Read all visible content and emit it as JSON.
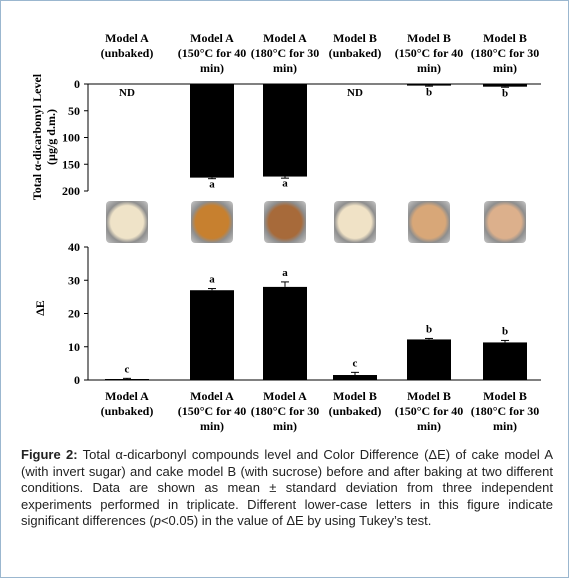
{
  "top_categories": [
    "Model A\n(unbaked)",
    "Model A\n(150°C for 40\nmin)",
    "Model A\n(180°C for 30\nmin)",
    "Model B\n(unbaked)",
    "Model B\n(150°C for 40\nmin)",
    "Model B\n(180°C for 30\nmin)"
  ],
  "bottom_categories": [
    "Model A\n(unbaked)",
    "Model A\n(150°C for 40\nmin)",
    "Model A\n(180°C for 30\nmin)",
    "Model B\n(unbaked)",
    "Model B\n(150°C for 40\nmin)",
    "Model B\n(180°C for 30\nmin)"
  ],
  "thumb_colors": [
    "#efe3c8",
    "#c7802f",
    "#a76a3a",
    "#f0e2c6",
    "#d8a778",
    "#dcb08c"
  ],
  "chart_data": [
    {
      "type": "bar",
      "ylabel": "Total α-dicarbonyl Level\n(µg/g d.m.)",
      "ylim": [
        0,
        200
      ],
      "y_inverted": true,
      "yticks": [
        "0",
        "50",
        "100",
        "150",
        "200"
      ],
      "values": [
        0,
        175,
        173,
        0,
        3,
        5
      ],
      "errors": [
        0,
        2,
        3,
        0,
        1,
        1
      ],
      "labels": [
        "ND",
        "a",
        "a",
        "ND",
        "b",
        "b"
      ],
      "bar_color": "#000000"
    },
    {
      "type": "bar",
      "ylabel": "ΔE",
      "ylim": [
        0,
        40
      ],
      "yticks": [
        "0",
        "10",
        "20",
        "30",
        "40"
      ],
      "values": [
        0.3,
        27,
        28,
        1.5,
        12.2,
        11.3
      ],
      "errors": [
        0.2,
        0.5,
        1.5,
        0.8,
        0.3,
        0.6
      ],
      "labels": [
        "c",
        "a",
        "a",
        "c",
        "b",
        "b"
      ],
      "bar_color": "#000000"
    }
  ],
  "caption": {
    "figure_label": "Figure 2:",
    "text_1": " Total α-dicarbonyl compounds level and Color Difference (ΔE) of cake model A (with invert sugar) and cake model B (with sucrose) before and after baking at two different conditions. Data are shown as mean ± standard deviation from three independent experiments performed in triplicate. Different lower-case letters in this figure indicate significant differences (",
    "p_symbol": "p",
    "text_2": "<0.05) in the value of ΔE by using Tukey’s test."
  }
}
